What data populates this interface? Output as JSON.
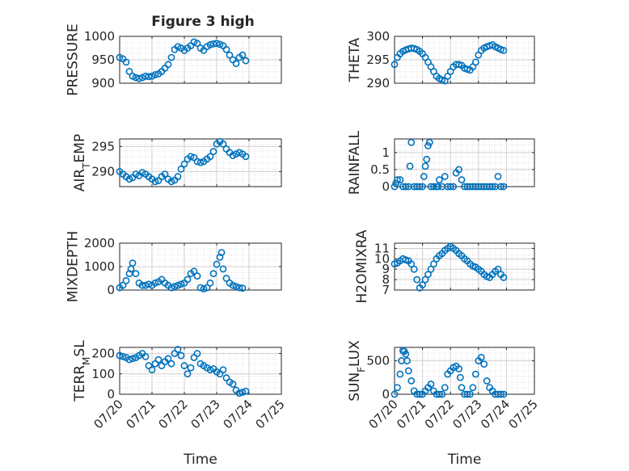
{
  "figure": {
    "title": "Figure 3 high",
    "marker_color": "#0072BD",
    "x_tick_labels": [
      "07/20",
      "07/21",
      "07/22",
      "07/23",
      "07/24",
      "07/25"
    ],
    "x_label": "Time"
  },
  "chart_data": [
    {
      "type": "scatter",
      "title": "Figure 3 high",
      "ylabel": "PRESSURE",
      "xlim": [
        "07/20",
        "07/25"
      ],
      "ylim": [
        900,
        1000
      ],
      "yticks": [
        900,
        950,
        1000
      ],
      "x": [
        0.0,
        0.1,
        0.2,
        0.3,
        0.4,
        0.5,
        0.6,
        0.7,
        0.8,
        0.9,
        1.0,
        1.1,
        1.2,
        1.3,
        1.4,
        1.5,
        1.6,
        1.7,
        1.8,
        1.9,
        2.0,
        2.1,
        2.2,
        2.3,
        2.4,
        2.5,
        2.6,
        2.7,
        2.8,
        2.9,
        3.0,
        3.1,
        3.2,
        3.3,
        3.4,
        3.5,
        3.6,
        3.7,
        3.8,
        3.9
      ],
      "values": [
        955,
        952,
        945,
        925,
        915,
        912,
        910,
        912,
        915,
        914,
        915,
        918,
        920,
        925,
        932,
        940,
        955,
        972,
        978,
        975,
        970,
        975,
        980,
        988,
        985,
        975,
        970,
        978,
        982,
        984,
        985,
        983,
        980,
        972,
        960,
        950,
        942,
        955,
        960,
        948
      ]
    },
    {
      "type": "scatter",
      "ylabel": "THETA",
      "xlim": [
        "07/20",
        "07/25"
      ],
      "ylim": [
        290,
        300
      ],
      "yticks": [
        290,
        295,
        300
      ],
      "x": [
        0.0,
        0.1,
        0.2,
        0.3,
        0.4,
        0.5,
        0.6,
        0.7,
        0.8,
        0.9,
        1.0,
        1.1,
        1.2,
        1.3,
        1.4,
        1.5,
        1.6,
        1.7,
        1.8,
        1.9,
        2.0,
        2.1,
        2.2,
        2.3,
        2.4,
        2.5,
        2.6,
        2.7,
        2.8,
        2.9,
        3.0,
        3.1,
        3.2,
        3.3,
        3.4,
        3.5,
        3.6,
        3.7,
        3.8,
        3.9
      ],
      "values": [
        294,
        295.5,
        296.3,
        296.8,
        297.1,
        297.3,
        297.5,
        297.4,
        297.2,
        296.8,
        296.3,
        295.5,
        294.5,
        293.5,
        292.5,
        291.5,
        291,
        290.7,
        290.5,
        291.5,
        292.5,
        293.5,
        294,
        294,
        293.8,
        293.2,
        293,
        292.8,
        293.5,
        294.5,
        296,
        297,
        297.5,
        297.8,
        298,
        298.2,
        297.8,
        297.5,
        297.2,
        297
      ]
    },
    {
      "type": "scatter",
      "ylabel": "AIR_TEMP",
      "xlim": [
        "07/20",
        "07/25"
      ],
      "ylim": [
        287,
        296.5
      ],
      "yticks": [
        290,
        295
      ],
      "x": [
        0.0,
        0.1,
        0.2,
        0.3,
        0.4,
        0.5,
        0.6,
        0.7,
        0.8,
        0.9,
        1.0,
        1.1,
        1.2,
        1.3,
        1.4,
        1.5,
        1.6,
        1.7,
        1.8,
        1.9,
        2.0,
        2.1,
        2.2,
        2.3,
        2.4,
        2.5,
        2.6,
        2.7,
        2.8,
        2.9,
        3.0,
        3.1,
        3.2,
        3.3,
        3.4,
        3.5,
        3.6,
        3.7,
        3.8,
        3.9
      ],
      "values": [
        290,
        289.5,
        289,
        288.5,
        288.8,
        289.5,
        289.2,
        289.8,
        289.5,
        289,
        288.5,
        288,
        288.2,
        289,
        289.5,
        288.5,
        288,
        288.3,
        289,
        290.5,
        291.5,
        292.5,
        293,
        292.8,
        292,
        291.8,
        292,
        292.5,
        293,
        294,
        295.5,
        296,
        295.5,
        294.5,
        293.8,
        293.2,
        293.5,
        293.8,
        293.5,
        293
      ]
    },
    {
      "type": "scatter",
      "ylabel": "RAINFALL",
      "xlim": [
        "07/20",
        "07/25"
      ],
      "ylim": [
        0,
        1.4
      ],
      "yticks": [
        0,
        0.5,
        1
      ],
      "x": [
        0.0,
        0.05,
        0.1,
        0.2,
        0.3,
        0.4,
        0.5,
        0.55,
        0.6,
        0.7,
        0.8,
        0.9,
        1.0,
        1.05,
        1.1,
        1.15,
        1.2,
        1.25,
        1.3,
        1.4,
        1.5,
        1.55,
        1.6,
        1.7,
        1.8,
        1.9,
        2.0,
        2.1,
        2.2,
        2.3,
        2.4,
        2.5,
        2.6,
        2.7,
        2.8,
        2.9,
        3.0,
        3.1,
        3.2,
        3.3,
        3.4,
        3.5,
        3.6,
        3.7,
        3.8,
        3.9
      ],
      "values": [
        0,
        0.1,
        0.2,
        0.2,
        0,
        0,
        0,
        0.6,
        1.3,
        0,
        0,
        0,
        0,
        0.3,
        0.6,
        0.8,
        1.2,
        1.3,
        0,
        0,
        0,
        0,
        0.2,
        0,
        0.3,
        0,
        0,
        0,
        0.4,
        0.5,
        0.2,
        0,
        0,
        0,
        0,
        0,
        0,
        0,
        0,
        0,
        0,
        0,
        0,
        0.3,
        0,
        0
      ]
    },
    {
      "type": "scatter",
      "ylabel": "MIXDEPTH",
      "xlim": [
        "07/20",
        "07/25"
      ],
      "ylim": [
        0,
        2000
      ],
      "yticks": [
        0,
        1000,
        2000
      ],
      "x": [
        0.0,
        0.1,
        0.2,
        0.3,
        0.35,
        0.4,
        0.5,
        0.6,
        0.7,
        0.8,
        0.9,
        1.0,
        1.1,
        1.2,
        1.3,
        1.4,
        1.5,
        1.6,
        1.7,
        1.8,
        1.9,
        2.0,
        2.1,
        2.2,
        2.3,
        2.4,
        2.5,
        2.6,
        2.7,
        2.8,
        2.9,
        3.0,
        3.1,
        3.15,
        3.2,
        3.3,
        3.4,
        3.5,
        3.6,
        3.7,
        3.8
      ],
      "values": [
        100,
        200,
        400,
        700,
        900,
        1150,
        700,
        300,
        200,
        200,
        250,
        200,
        300,
        350,
        450,
        300,
        200,
        100,
        150,
        200,
        250,
        300,
        450,
        700,
        800,
        600,
        100,
        50,
        100,
        300,
        700,
        1100,
        1400,
        1600,
        900,
        500,
        300,
        200,
        150,
        100,
        80
      ]
    },
    {
      "type": "scatter",
      "ylabel": "H2OMIXRA",
      "xlim": [
        "07/20",
        "07/25"
      ],
      "ylim": [
        7,
        11.5
      ],
      "yticks": [
        7,
        8,
        9,
        10,
        11
      ],
      "x": [
        0.0,
        0.1,
        0.2,
        0.3,
        0.4,
        0.5,
        0.6,
        0.7,
        0.8,
        0.9,
        1.0,
        1.1,
        1.2,
        1.3,
        1.4,
        1.5,
        1.6,
        1.7,
        1.8,
        1.9,
        2.0,
        2.1,
        2.2,
        2.3,
        2.4,
        2.5,
        2.6,
        2.7,
        2.8,
        2.9,
        3.0,
        3.1,
        3.2,
        3.3,
        3.4,
        3.5,
        3.6,
        3.7,
        3.8,
        3.9
      ],
      "values": [
        9.5,
        9.6,
        9.8,
        10,
        9.9,
        9.8,
        9.5,
        9,
        8,
        7.2,
        7.5,
        8,
        8.5,
        9,
        9.5,
        10,
        10.3,
        10.5,
        10.8,
        11,
        11.2,
        11,
        10.8,
        10.5,
        10.3,
        10,
        9.8,
        9.5,
        9.3,
        9.2,
        9,
        8.8,
        8.5,
        8.3,
        8.2,
        8.5,
        8.8,
        9,
        8.5,
        8.2
      ]
    },
    {
      "type": "scatter",
      "ylabel": "TERR_MSL",
      "xlim": [
        "07/20",
        "07/25"
      ],
      "ylim": [
        0,
        230
      ],
      "yticks": [
        0,
        100,
        200
      ],
      "x": [
        0.0,
        0.1,
        0.2,
        0.3,
        0.4,
        0.5,
        0.6,
        0.7,
        0.8,
        0.9,
        1.0,
        1.1,
        1.2,
        1.3,
        1.4,
        1.5,
        1.6,
        1.7,
        1.8,
        1.9,
        2.0,
        2.1,
        2.2,
        2.3,
        2.4,
        2.5,
        2.6,
        2.7,
        2.8,
        2.9,
        3.0,
        3.1,
        3.2,
        3.3,
        3.4,
        3.5,
        3.6,
        3.7,
        3.8,
        3.9
      ],
      "values": [
        190,
        185,
        180,
        170,
        175,
        180,
        190,
        200,
        185,
        140,
        120,
        150,
        170,
        140,
        160,
        175,
        150,
        200,
        220,
        190,
        140,
        100,
        130,
        180,
        200,
        150,
        140,
        130,
        120,
        125,
        110,
        100,
        120,
        80,
        60,
        50,
        20,
        5,
        10,
        15
      ]
    },
    {
      "type": "scatter",
      "ylabel": "SUN_FLUX",
      "xlim": [
        "07/20",
        "07/25"
      ],
      "ylim": [
        0,
        700
      ],
      "yticks": [
        0,
        500
      ],
      "x": [
        0.0,
        0.1,
        0.2,
        0.25,
        0.3,
        0.35,
        0.4,
        0.45,
        0.5,
        0.6,
        0.7,
        0.8,
        0.9,
        1.0,
        1.1,
        1.2,
        1.3,
        1.4,
        1.5,
        1.6,
        1.7,
        1.8,
        1.9,
        2.0,
        2.1,
        2.2,
        2.3,
        2.35,
        2.4,
        2.5,
        2.6,
        2.7,
        2.8,
        2.9,
        3.0,
        3.1,
        3.2,
        3.3,
        3.4,
        3.5,
        3.6,
        3.7,
        3.8,
        3.9
      ],
      "values": [
        0,
        100,
        300,
        500,
        650,
        640,
        600,
        500,
        350,
        200,
        50,
        0,
        0,
        0,
        50,
        100,
        150,
        50,
        0,
        0,
        0,
        100,
        300,
        350,
        400,
        420,
        380,
        250,
        100,
        0,
        0,
        0,
        100,
        300,
        500,
        550,
        450,
        200,
        100,
        50,
        0,
        0,
        0,
        0
      ]
    }
  ]
}
